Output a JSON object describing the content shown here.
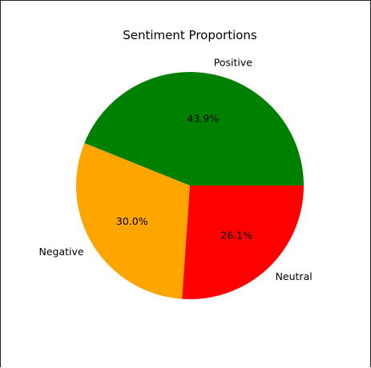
{
  "chart_data": {
    "type": "pie",
    "title": "Sentiment Proportions",
    "slices": [
      {
        "label": "Positive",
        "value": 43.9,
        "pct_label": "43.9%",
        "color": "#008000"
      },
      {
        "label": "Negative",
        "value": 30.0,
        "pct_label": "30.0%",
        "color": "#FFA500"
      },
      {
        "label": "Neutral",
        "value": 26.1,
        "pct_label": "26.1%",
        "color": "#FF0000"
      }
    ],
    "start_angle_deg": 0,
    "direction": "counterclockwise",
    "legend": "none"
  }
}
